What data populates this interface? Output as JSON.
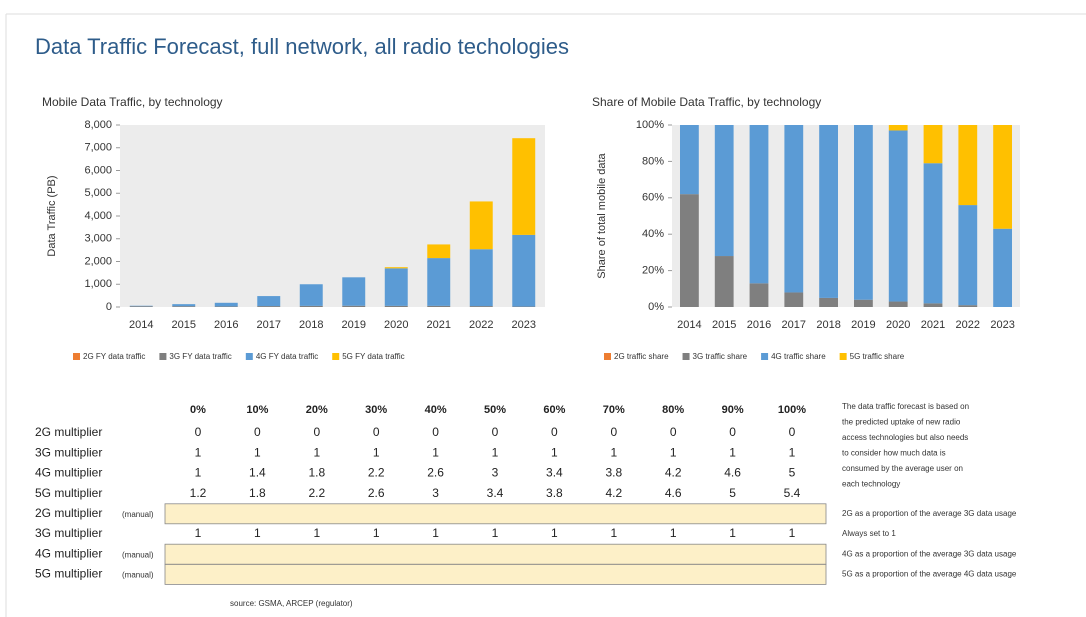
{
  "title": "Data Traffic Forecast, full network, all radio techologies",
  "chart_data": [
    {
      "type": "bar",
      "stacked": true,
      "title": "Mobile Data Traffic, by technology",
      "ylabel": "Data Traffic (PB)",
      "categories": [
        "2014",
        "2015",
        "2016",
        "2017",
        "2018",
        "2019",
        "2020",
        "2021",
        "2022",
        "2023"
      ],
      "series": [
        {
          "name": "2G FY data traffic",
          "color": "#ed7d31",
          "values": [
            0,
            0,
            0,
            0,
            0,
            0,
            0,
            0,
            0,
            0
          ]
        },
        {
          "name": "3G FY data traffic",
          "color": "#7f7f7f",
          "values": [
            35,
            35,
            25,
            40,
            50,
            55,
            50,
            50,
            40,
            20
          ]
        },
        {
          "name": "4G FY data traffic",
          "color": "#5b9bd5",
          "values": [
            20,
            90,
            160,
            440,
            950,
            1250,
            1650,
            2100,
            2500,
            3150
          ]
        },
        {
          "name": "5G FY data traffic",
          "color": "#ffc000",
          "values": [
            0,
            0,
            0,
            0,
            0,
            0,
            50,
            600,
            2100,
            4250
          ]
        }
      ],
      "ylim": [
        0,
        8000
      ],
      "yticks": [
        0,
        {
          "value": 1000,
          "label": "1,000"
        },
        {
          "value": 2000,
          "label": "2,000"
        },
        {
          "value": 3000,
          "label": "3,000"
        },
        {
          "value": 4000,
          "label": "4,000"
        },
        {
          "value": 5000,
          "label": "5,000"
        },
        {
          "value": 6000,
          "label": "6,000"
        },
        {
          "value": 7000,
          "label": "7,000"
        },
        {
          "value": 8000,
          "label": "8,000"
        }
      ],
      "grid": false,
      "legend": "bottom"
    },
    {
      "type": "bar",
      "stacked": true,
      "title": "Share of Mobile Data Traffic, by technology",
      "ylabel": "Share of total mobile data",
      "categories": [
        "2014",
        "2015",
        "2016",
        "2017",
        "2018",
        "2019",
        "2020",
        "2021",
        "2022",
        "2023"
      ],
      "series": [
        {
          "name": "2G traffic share",
          "color": "#ed7d31",
          "values": [
            0,
            0,
            0,
            0,
            0,
            0,
            0,
            0,
            0,
            0
          ]
        },
        {
          "name": "3G traffic share",
          "color": "#7f7f7f",
          "values": [
            62,
            28,
            13,
            8,
            5,
            4,
            3,
            2,
            1,
            0
          ]
        },
        {
          "name": "4G traffic share",
          "color": "#5b9bd5",
          "values": [
            38,
            72,
            87,
            92,
            95,
            96,
            94,
            77,
            55,
            43
          ]
        },
        {
          "name": "5G traffic share",
          "color": "#ffc000",
          "values": [
            0,
            0,
            0,
            0,
            0,
            0,
            3,
            21,
            44,
            57
          ]
        }
      ],
      "ylim": [
        0,
        100
      ],
      "yticks": [
        {
          "value": 0,
          "label": "0%"
        },
        {
          "value": 20,
          "label": "20%"
        },
        {
          "value": 40,
          "label": "40%"
        },
        {
          "value": 60,
          "label": "60%"
        },
        {
          "value": 80,
          "label": "80%"
        },
        {
          "value": 100,
          "label": "100%"
        }
      ],
      "grid": false,
      "legend": "bottom"
    }
  ],
  "table": {
    "columns": [
      "0%",
      "10%",
      "20%",
      "30%",
      "40%",
      "50%",
      "60%",
      "70%",
      "80%",
      "90%",
      "100%"
    ],
    "rows": [
      {
        "label": "2G multiplier",
        "values": [
          0,
          0,
          0,
          0,
          0,
          0,
          0,
          0,
          0,
          0,
          0
        ]
      },
      {
        "label": "3G multiplier",
        "values": [
          1,
          1,
          1,
          1,
          1,
          1,
          1,
          1,
          1,
          1,
          1
        ]
      },
      {
        "label": "4G multiplier",
        "values": [
          1,
          1.4,
          1.8,
          2.2,
          2.6,
          3,
          3.4,
          3.8,
          4.2,
          4.6,
          5
        ]
      },
      {
        "label": "5G multiplier",
        "values": [
          1.2,
          1.8,
          2.2,
          2.6,
          3,
          3.4,
          3.8,
          4.2,
          4.6,
          5,
          5.4
        ]
      },
      {
        "label": "2G multiplier",
        "tag": "(manual)",
        "note": "2G as a proportion of the average 3G data usage"
      },
      {
        "label": "3G multiplier",
        "values": [
          1,
          1,
          1,
          1,
          1,
          1,
          1,
          1,
          1,
          1,
          1
        ],
        "note": "Always set to 1"
      },
      {
        "label": "4G multiplier",
        "tag": "(manual)",
        "note": "4G as a proportion of the average 3G data usage"
      },
      {
        "label": "5G multiplier",
        "tag": "(manual)",
        "note": "5G as a proportion of the average 4G data usage"
      }
    ],
    "description": [
      "The data traffic forecast is based on",
      "the predicted uptake of new radio",
      "access technologies but also needs",
      "to consider how much data is",
      "consumed by the average user on",
      "each technology"
    ]
  },
  "source": "source: GSMA, ARCEP (regulator)"
}
